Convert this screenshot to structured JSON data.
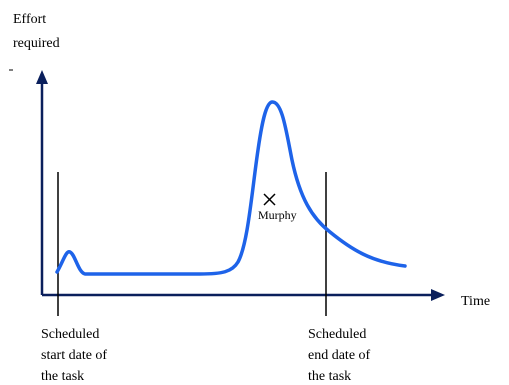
{
  "y_axis_label": [
    "Effort",
    "required"
  ],
  "x_axis_label": "Time",
  "marker_label": "Murphy",
  "start_marker_label": [
    "Scheduled",
    "start date of",
    "the task"
  ],
  "end_marker_label": [
    "Scheduled",
    "end date of",
    "the task"
  ],
  "colors": {
    "axis": "#0a1f5c",
    "curve": "#1e63e9",
    "marker": "#000000"
  }
}
